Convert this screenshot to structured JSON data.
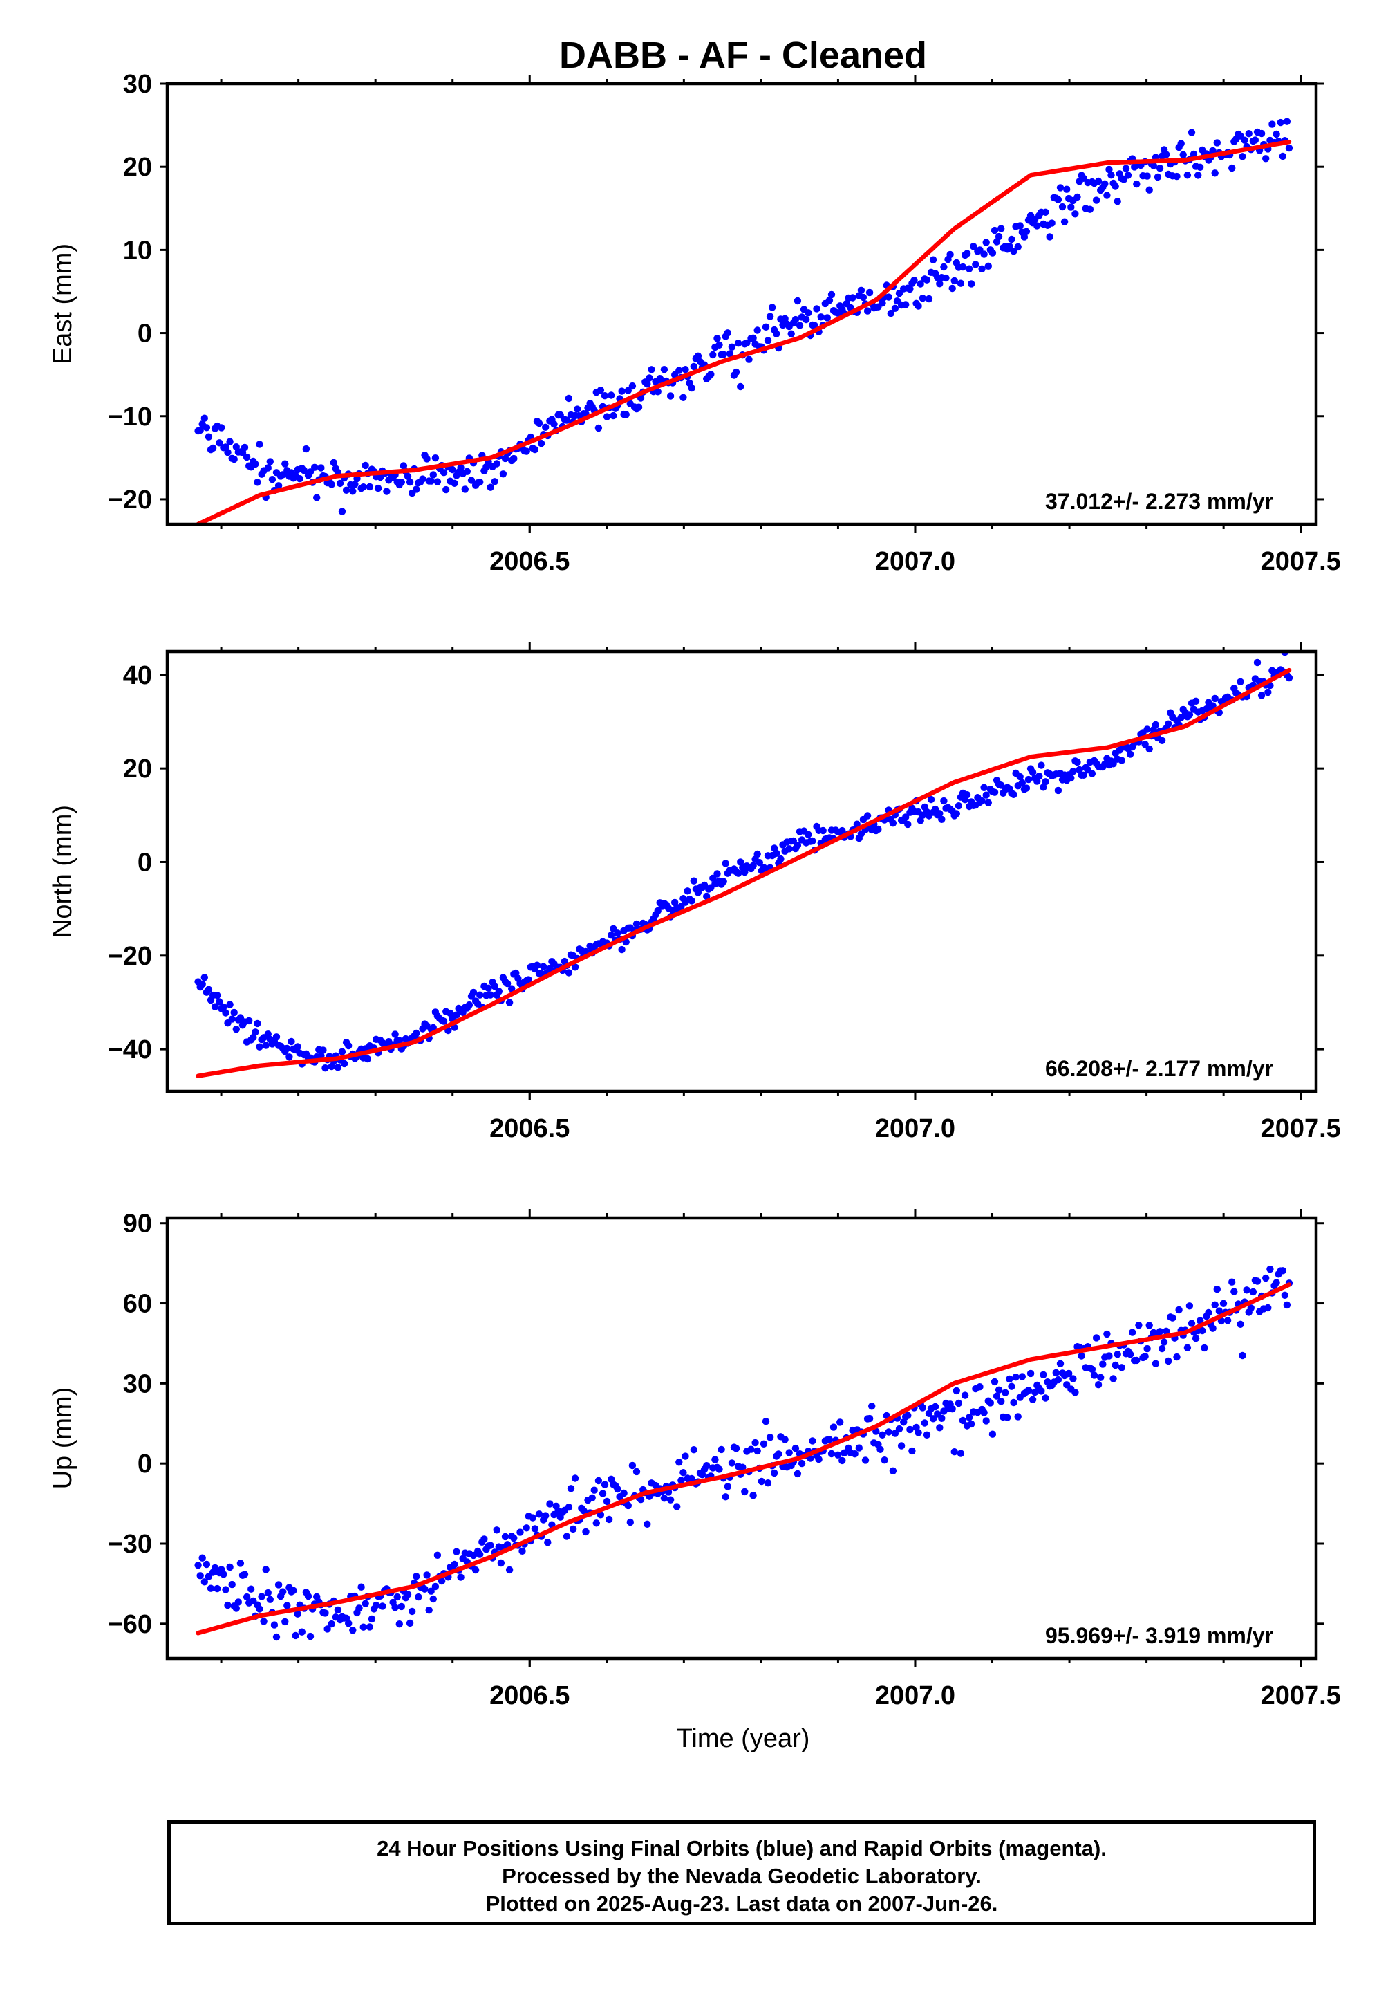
{
  "colors": {
    "final_orbits": "#0000ff",
    "fit_line": "#ff0000",
    "frame": "#000000",
    "background": "#ffffff"
  },
  "chart_data": {
    "type": "scatter",
    "title": "DABB  - AF - Cleaned",
    "xlabel": "Time (year)",
    "x_tick_labels": [
      "2006.5",
      "2007.0",
      "2007.5"
    ],
    "x_tick_values": [
      2006.5,
      2007.0,
      2007.5
    ],
    "xlim": [
      2006.03,
      2007.52
    ],
    "start": 2006.07,
    "end": 2007.485,
    "grid": false,
    "panels": [
      {
        "ylabel": "East (mm)",
        "ylim": [
          -23,
          30
        ],
        "y_ticks": [
          30,
          20,
          10,
          0,
          -10,
          -20
        ],
        "velocity_label": "37.012+/- 2.273 mm/yr",
        "fit_curve": {
          "x": [
            2006.07,
            2006.15,
            2006.25,
            2006.35,
            2006.45,
            2006.55,
            2006.65,
            2006.75,
            2006.85,
            2006.95,
            2007.05,
            2007.15,
            2007.25,
            2007.35,
            2007.485
          ],
          "y": [
            -23,
            -19.5,
            -17.2,
            -16.5,
            -15,
            -11.2,
            -7,
            -3.4,
            -0.6,
            4,
            12.5,
            19,
            20.5,
            20.8,
            23
          ]
        },
        "observed_trend": {
          "x": [
            2006.07,
            2006.15,
            2006.25,
            2006.35,
            2006.45,
            2006.55,
            2006.65,
            2006.75,
            2006.85,
            2006.95,
            2007.05,
            2007.15,
            2007.25,
            2007.35,
            2007.485
          ],
          "y": [
            -11,
            -16.5,
            -17.5,
            -17.5,
            -16,
            -10,
            -7,
            -2.5,
            1.5,
            3.5,
            7.5,
            13.5,
            18,
            21.5,
            23.5
          ]
        },
        "scatter_sd": 1.2
      },
      {
        "ylabel": "North (mm)",
        "ylim": [
          -49,
          45
        ],
        "y_ticks": [
          40,
          20,
          0,
          -20,
          -40
        ],
        "velocity_label": "66.208+/- 2.177 mm/yr",
        "fit_curve": {
          "x": [
            2006.07,
            2006.15,
            2006.25,
            2006.35,
            2006.45,
            2006.55,
            2006.65,
            2006.75,
            2006.85,
            2006.95,
            2007.05,
            2007.15,
            2007.25,
            2007.35,
            2007.485
          ],
          "y": [
            -45.7,
            -43.5,
            -42,
            -38.5,
            -30.5,
            -22,
            -14,
            -7,
            1,
            9,
            17,
            22.5,
            24.5,
            29,
            41
          ]
        },
        "observed_trend": {
          "x": [
            2006.07,
            2006.15,
            2006.25,
            2006.35,
            2006.45,
            2006.55,
            2006.65,
            2006.75,
            2006.85,
            2006.95,
            2007.05,
            2007.15,
            2007.25,
            2007.35,
            2007.485
          ],
          "y": [
            -26,
            -38,
            -42.5,
            -37,
            -28,
            -21,
            -13.5,
            -3,
            4,
            8.5,
            12,
            17.5,
            21,
            31,
            41
          ]
        },
        "scatter_sd": 1.3
      },
      {
        "ylabel": "Up (mm)",
        "ylim": [
          -73,
          92
        ],
        "y_ticks": [
          90,
          60,
          30,
          0,
          -30,
          -60
        ],
        "velocity_label": "95.969+/- 3.919 mm/yr",
        "fit_curve": {
          "x": [
            2006.07,
            2006.15,
            2006.25,
            2006.35,
            2006.45,
            2006.55,
            2006.65,
            2006.75,
            2006.85,
            2006.95,
            2007.05,
            2007.15,
            2007.25,
            2007.35,
            2007.485
          ],
          "y": [
            -63.5,
            -57,
            -52,
            -46,
            -35,
            -22,
            -11,
            -5,
            2,
            14,
            30,
            39,
            44,
            49,
            67
          ]
        },
        "observed_trend": {
          "x": [
            2006.07,
            2006.15,
            2006.25,
            2006.35,
            2006.45,
            2006.55,
            2006.65,
            2006.75,
            2006.85,
            2006.95,
            2007.05,
            2007.15,
            2007.25,
            2007.35,
            2007.485
          ],
          "y": [
            -42,
            -50,
            -58,
            -48,
            -33,
            -18,
            -10,
            -3,
            3,
            12,
            18,
            28,
            42,
            50,
            68
          ]
        },
        "scatter_sd": 5.0
      }
    ]
  },
  "footer": {
    "line1": "24 Hour Positions Using Final Orbits (blue) and Rapid Orbits (magenta).",
    "line2": "Processed by the Nevada Geodetic Laboratory.",
    "line3": "Plotted on 2025-Aug-23. Last data on 2007-Jun-26."
  }
}
